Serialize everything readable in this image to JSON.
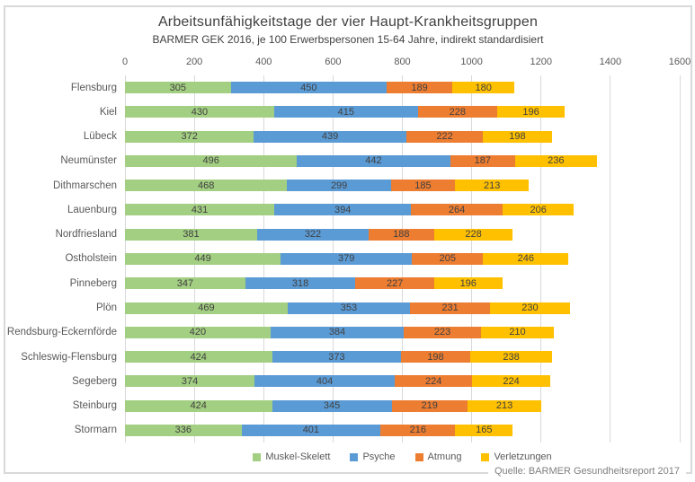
{
  "chart_data": {
    "type": "bar",
    "orientation": "horizontal",
    "stacked": true,
    "title": "Arbeitsunfähigkeitstage der vier Haupt-Krankheitsgruppen",
    "subtitle": "BARMER GEK 2016, je 100 Erwerbspersonen 15-64 Jahre, indirekt standardisiert",
    "xlim": [
      0,
      1600
    ],
    "x_ticks": [
      0,
      200,
      400,
      600,
      800,
      1000,
      1200,
      1400,
      1600
    ],
    "grid": true,
    "legend_position": "bottom",
    "categories": [
      "Flensburg",
      "Kiel",
      "Lübeck",
      "Neumünster",
      "Dithmarschen",
      "Lauenburg",
      "Nordfriesland",
      "Ostholstein",
      "Pinneberg",
      "Plön",
      "Rendsburg-Eckernförde",
      "Schleswig-Flensburg",
      "Segeberg",
      "Steinburg",
      "Stormarn"
    ],
    "series": [
      {
        "name": "Muskel-Skelett",
        "color": "#a3cf82",
        "values": [
          305,
          430,
          372,
          496,
          468,
          431,
          381,
          449,
          347,
          469,
          420,
          424,
          374,
          424,
          336
        ]
      },
      {
        "name": "Psyche",
        "color": "#5b9bd5",
        "values": [
          450,
          415,
          439,
          442,
          299,
          394,
          322,
          379,
          318,
          353,
          384,
          373,
          404,
          345,
          401
        ]
      },
      {
        "name": "Atmung",
        "color": "#ed7d31",
        "values": [
          189,
          228,
          222,
          187,
          185,
          264,
          188,
          205,
          227,
          231,
          223,
          198,
          224,
          219,
          216
        ]
      },
      {
        "name": "Verletzungen",
        "color": "#ffc000",
        "values": [
          180,
          196,
          198,
          236,
          213,
          206,
          228,
          246,
          196,
          230,
          210,
          238,
          224,
          213,
          165
        ]
      }
    ]
  },
  "source": "Quelle: BARMER Gesundheitsreport 2017",
  "colors": {
    "frame_border": "#d9d9d9",
    "gridline": "#d9d9d9",
    "title_text": "#404040",
    "axis_text": "#595959",
    "value_text": "#404040",
    "source_text": "#808080"
  }
}
